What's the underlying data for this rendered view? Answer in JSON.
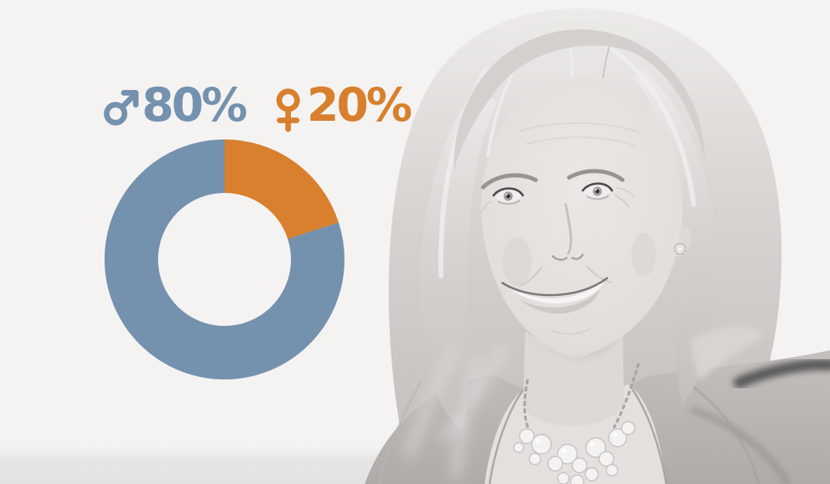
{
  "scene": {
    "background_color": "#f4f3f2",
    "couch_band_color": "#e5e4e2"
  },
  "legend": {
    "items": [
      {
        "id": "male",
        "icon": "male-icon",
        "label": "80%",
        "color": "#7491ae"
      },
      {
        "id": "female",
        "icon": "female-icon",
        "label": "20%",
        "color": "#d8802d"
      }
    ]
  },
  "chart_data": {
    "type": "pie",
    "categories": [
      "Female",
      "Male"
    ],
    "values": [
      20,
      80
    ],
    "unit": "%",
    "colors": [
      "#d8802d",
      "#7491ae"
    ],
    "donut_hole_ratio": 0.55,
    "start_angle_deg": 0,
    "clockwise": true,
    "legend_position": "top",
    "title": ""
  },
  "photo": {
    "alt": "Black-and-white portrait of a smiling woman with shoulder-length blonde hair, stud earring and a pearl cluster necklace"
  }
}
